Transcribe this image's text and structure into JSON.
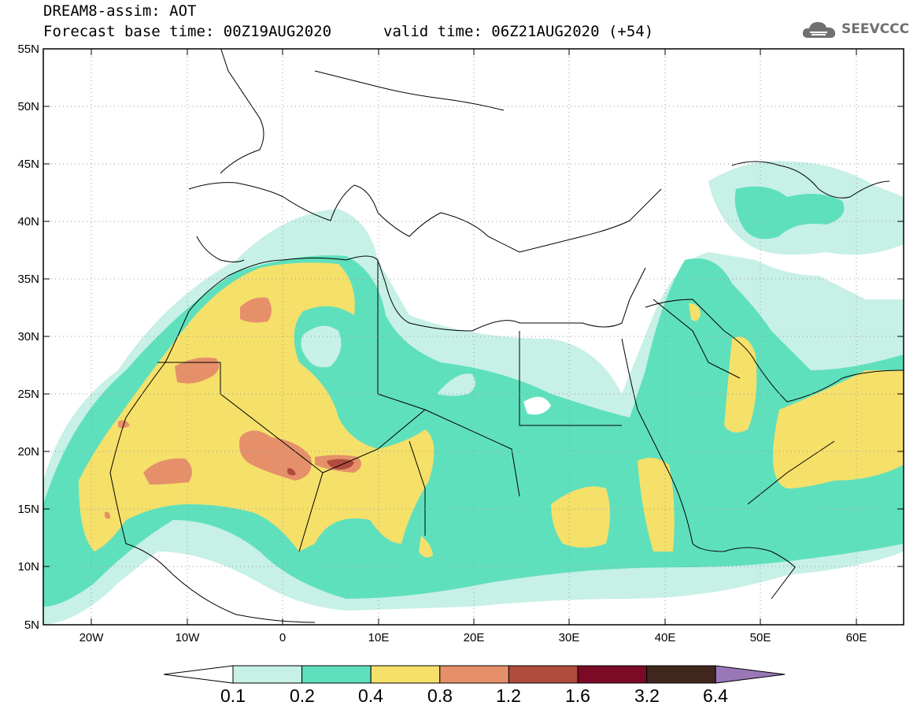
{
  "header": {
    "line1": "DREAM8-assim: AOT",
    "line2": "Forecast base time: 00Z19AUG2020",
    "line2b": "valid time: 06Z21AUG2020 (+54)",
    "logo_text": "SEEVCCC",
    "logo_icon": "cloud-icon"
  },
  "axes": {
    "lat_labels": [
      "55N",
      "50N",
      "45N",
      "40N",
      "35N",
      "30N",
      "25N",
      "20N",
      "15N",
      "10N",
      "5N"
    ],
    "lon_labels": [
      "20W",
      "10W",
      "0",
      "10E",
      "20E",
      "30E",
      "40E",
      "50E",
      "60E"
    ]
  },
  "colorbar": {
    "labels": [
      "0.1",
      "0.2",
      "0.4",
      "0.8",
      "1.2",
      "1.6",
      "3.2",
      "6.4"
    ],
    "colors": [
      "#ffffff",
      "#c7f0e6",
      "#5fe0bc",
      "#f5e06a",
      "#e5906a",
      "#b04c3c",
      "#7a0a26",
      "#40261c",
      "#9a78b8"
    ]
  }
}
